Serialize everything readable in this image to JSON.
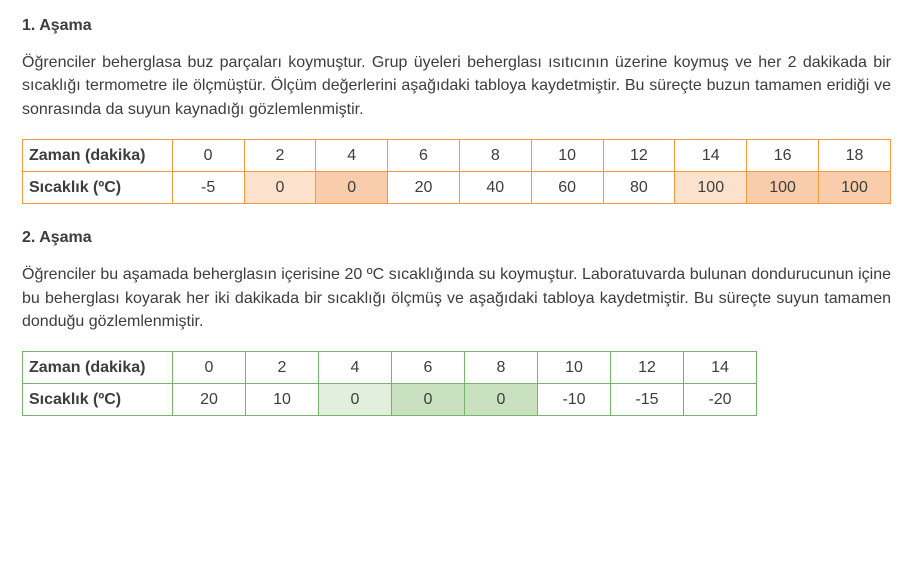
{
  "stage1": {
    "heading": "1. Aşama",
    "paragraph": "Öğrenciler beherglasa buz parçaları koymuştur. Grup üyeleri beherglası ısıtıcının üzerine koymuş ve her 2 dakikada bir sıcaklığı termometre ile ölçmüştür. Ölçüm değerlerini aşağıdaki tabloya kaydetmiştir. Bu süreçte buzun tamamen eridiği ve sonrasında da suyun kaynadığı gözlemlenmiştir.",
    "table": {
      "type": "table",
      "border_color": "#f39a3f",
      "highlight_light": "#fce2cc",
      "highlight_dark": "#f9ccab",
      "row_headers": [
        "Zaman (dakika)",
        "Sıcaklık (ºC)"
      ],
      "columns": [
        "0",
        "2",
        "4",
        "6",
        "8",
        "10",
        "12",
        "14",
        "16",
        "18"
      ],
      "cells": [
        {
          "v": "-5",
          "hl": null
        },
        {
          "v": "0",
          "hl": "light"
        },
        {
          "v": "0",
          "hl": "dark"
        },
        {
          "v": "20",
          "hl": null
        },
        {
          "v": "40",
          "hl": null
        },
        {
          "v": "60",
          "hl": null
        },
        {
          "v": "80",
          "hl": null
        },
        {
          "v": "100",
          "hl": "light"
        },
        {
          "v": "100",
          "hl": "dark"
        },
        {
          "v": "100",
          "hl": "dark"
        }
      ]
    }
  },
  "stage2": {
    "heading": "2. Aşama",
    "paragraph": "Öğrenciler bu aşamada beherglasın içerisine 20 ºC sıcaklığında su koymuştur. Laboratuvarda bulunan dondurucunun içine bu beherglası koyarak her iki dakikada bir sıcaklığı ölçmüş ve aşağıdaki tabloya kaydetmiştir. Bu süreçte suyun tamamen donduğu gözlemlenmiştir.",
    "table": {
      "type": "table",
      "border_color": "#76b56c",
      "highlight_light": "#e3efdd",
      "highlight_dark": "#c9e1bf",
      "row_headers": [
        "Zaman (dakika)",
        "Sıcaklık (ºC)"
      ],
      "columns": [
        "0",
        "2",
        "4",
        "6",
        "8",
        "10",
        "12",
        "14"
      ],
      "cells": [
        {
          "v": "20",
          "hl": null
        },
        {
          "v": "10",
          "hl": null
        },
        {
          "v": "0",
          "hl": "light"
        },
        {
          "v": "0",
          "hl": "dark"
        },
        {
          "v": "0",
          "hl": "dark"
        },
        {
          "v": "-10",
          "hl": null
        },
        {
          "v": "-15",
          "hl": null
        },
        {
          "v": "-20",
          "hl": null
        }
      ]
    }
  },
  "style": {
    "text_color": "#3d3d3d",
    "font_family": "Arial",
    "font_size_body_pt": 12,
    "font_size_heading_pt": 12,
    "background_color": "#ffffff"
  }
}
